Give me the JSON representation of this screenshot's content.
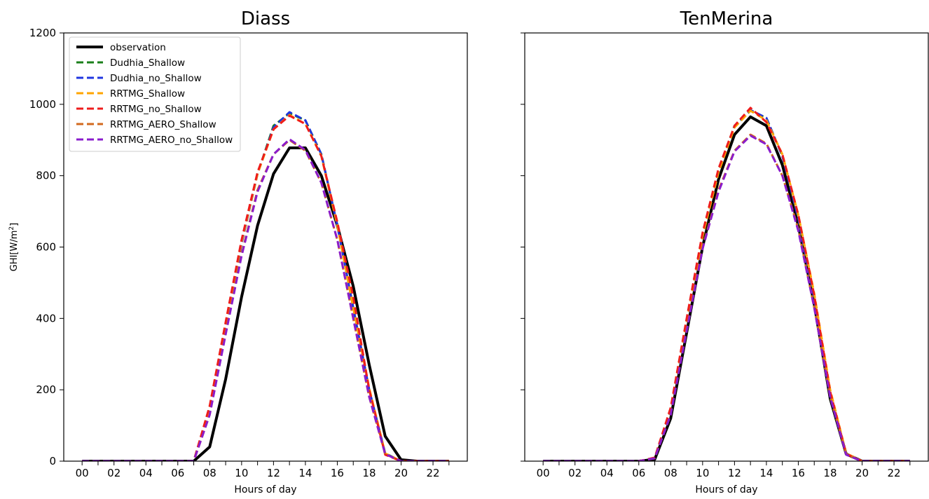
{
  "chart_data": [
    {
      "type": "line",
      "title": "Diass",
      "xlabel": "Hours of day",
      "ylabel": "GHI[W/m²]",
      "ylabel_main": "GHI[W/m",
      "ylabel_sup": "2",
      "ylabel_end": "]",
      "ylim": [
        0,
        1200
      ],
      "yticks": [
        "0",
        "200",
        "400",
        "600",
        "800",
        "1000",
        "1200"
      ],
      "xticks": [
        "00",
        "02",
        "04",
        "06",
        "08",
        "10",
        "12",
        "14",
        "16",
        "18",
        "20",
        "22"
      ],
      "x": [
        0,
        1,
        2,
        3,
        4,
        5,
        6,
        7,
        8,
        9,
        10,
        11,
        12,
        13,
        14,
        15,
        16,
        17,
        18,
        19,
        20,
        21,
        22,
        23
      ],
      "legend": {
        "placement": "top-left"
      },
      "series": [
        {
          "name": "observation",
          "color": "#000000",
          "style": "solid",
          "values": [
            0,
            0,
            0,
            0,
            0,
            0,
            0,
            0,
            40,
            230,
            460,
            660,
            805,
            878,
            878,
            800,
            660,
            490,
            270,
            70,
            4,
            0,
            0,
            0
          ]
        },
        {
          "name": "Dudhia_Shallow",
          "color": "#1a7f1a",
          "style": "dashed",
          "values": [
            0,
            0,
            0,
            0,
            0,
            0,
            0,
            0,
            150,
            380,
            610,
            805,
            940,
            975,
            955,
            860,
            660,
            430,
            200,
            22,
            0,
            0,
            0,
            0
          ]
        },
        {
          "name": "Dudhia_no_Shallow",
          "color": "#1f35e0",
          "style": "dashed",
          "values": [
            0,
            0,
            0,
            0,
            0,
            0,
            0,
            0,
            150,
            380,
            610,
            805,
            935,
            978,
            955,
            860,
            660,
            430,
            200,
            20,
            0,
            0,
            0,
            0
          ]
        },
        {
          "name": "RRTMG_Shallow",
          "color": "#ffa500",
          "style": "dashed",
          "values": [
            0,
            0,
            0,
            0,
            0,
            0,
            0,
            0,
            150,
            385,
            615,
            805,
            930,
            970,
            945,
            855,
            660,
            430,
            205,
            22,
            0,
            0,
            0,
            0
          ]
        },
        {
          "name": "RRTMG_no_Shallow",
          "color": "#ee1c1c",
          "style": "dashed",
          "values": [
            0,
            0,
            0,
            0,
            0,
            0,
            0,
            0,
            155,
            390,
            620,
            810,
            930,
            968,
            945,
            855,
            670,
            460,
            200,
            18,
            0,
            0,
            0,
            0
          ]
        },
        {
          "name": "RRTMG_AERO_Shallow",
          "color": "#d2691e",
          "style": "dashed",
          "values": [
            0,
            0,
            0,
            0,
            0,
            0,
            0,
            0,
            130,
            360,
            580,
            760,
            860,
            900,
            870,
            780,
            620,
            400,
            180,
            20,
            0,
            0,
            0,
            0
          ]
        },
        {
          "name": "RRTMG_AERO_no_Shallow",
          "color": "#8a1ccc",
          "style": "dashed",
          "values": [
            0,
            0,
            0,
            0,
            0,
            0,
            0,
            0,
            130,
            355,
            575,
            755,
            860,
            902,
            872,
            780,
            620,
            400,
            180,
            20,
            0,
            0,
            0,
            0
          ]
        }
      ]
    },
    {
      "type": "line",
      "title": "TenMerina",
      "xlabel": "Hours of day",
      "ylim": [
        0,
        1200
      ],
      "xticks": [
        "00",
        "02",
        "04",
        "06",
        "08",
        "10",
        "12",
        "14",
        "16",
        "18",
        "20",
        "22"
      ],
      "x": [
        0,
        1,
        2,
        3,
        4,
        5,
        6,
        7,
        8,
        9,
        10,
        11,
        12,
        13,
        14,
        15,
        16,
        17,
        18,
        19,
        20,
        21,
        22,
        23
      ],
      "series": [
        {
          "name": "observation",
          "color": "#000000",
          "style": "solid",
          "values": [
            0,
            0,
            0,
            0,
            0,
            0,
            0,
            5,
            120,
            360,
            600,
            790,
            915,
            965,
            940,
            830,
            660,
            440,
            175,
            20,
            0,
            0,
            0,
            0
          ]
        },
        {
          "name": "Dudhia_Shallow",
          "color": "#1a7f1a",
          "style": "dashed",
          "values": [
            0,
            0,
            0,
            0,
            0,
            0,
            0,
            8,
            140,
            390,
            630,
            810,
            940,
            982,
            962,
            855,
            680,
            455,
            185,
            20,
            0,
            0,
            0,
            0
          ]
        },
        {
          "name": "Dudhia_no_Shallow",
          "color": "#1f35e0",
          "style": "dashed",
          "values": [
            0,
            0,
            0,
            0,
            0,
            0,
            0,
            8,
            140,
            390,
            630,
            810,
            938,
            984,
            962,
            855,
            680,
            455,
            185,
            20,
            0,
            0,
            0,
            0
          ]
        },
        {
          "name": "RRTMG_Shallow",
          "color": "#ffa500",
          "style": "dashed",
          "values": [
            0,
            0,
            0,
            0,
            0,
            0,
            0,
            8,
            140,
            390,
            630,
            810,
            935,
            982,
            955,
            860,
            690,
            470,
            200,
            22,
            0,
            0,
            0,
            0
          ]
        },
        {
          "name": "RRTMG_no_Shallow",
          "color": "#ee1c1c",
          "style": "dashed",
          "values": [
            0,
            0,
            0,
            0,
            0,
            0,
            0,
            10,
            150,
            400,
            640,
            820,
            940,
            990,
            950,
            860,
            690,
            465,
            195,
            20,
            0,
            0,
            0,
            0
          ]
        },
        {
          "name": "RRTMG_AERO_Shallow",
          "color": "#d2691e",
          "style": "dashed",
          "values": [
            0,
            0,
            0,
            0,
            0,
            0,
            0,
            8,
            130,
            370,
            600,
            760,
            870,
            915,
            890,
            800,
            650,
            430,
            180,
            20,
            0,
            0,
            0,
            0
          ]
        },
        {
          "name": "RRTMG_AERO_no_Shallow",
          "color": "#8a1ccc",
          "style": "dashed",
          "values": [
            0,
            0,
            0,
            0,
            0,
            0,
            0,
            8,
            130,
            365,
            595,
            755,
            868,
            912,
            888,
            800,
            645,
            430,
            180,
            18,
            0,
            0,
            0,
            0
          ]
        }
      ]
    }
  ]
}
